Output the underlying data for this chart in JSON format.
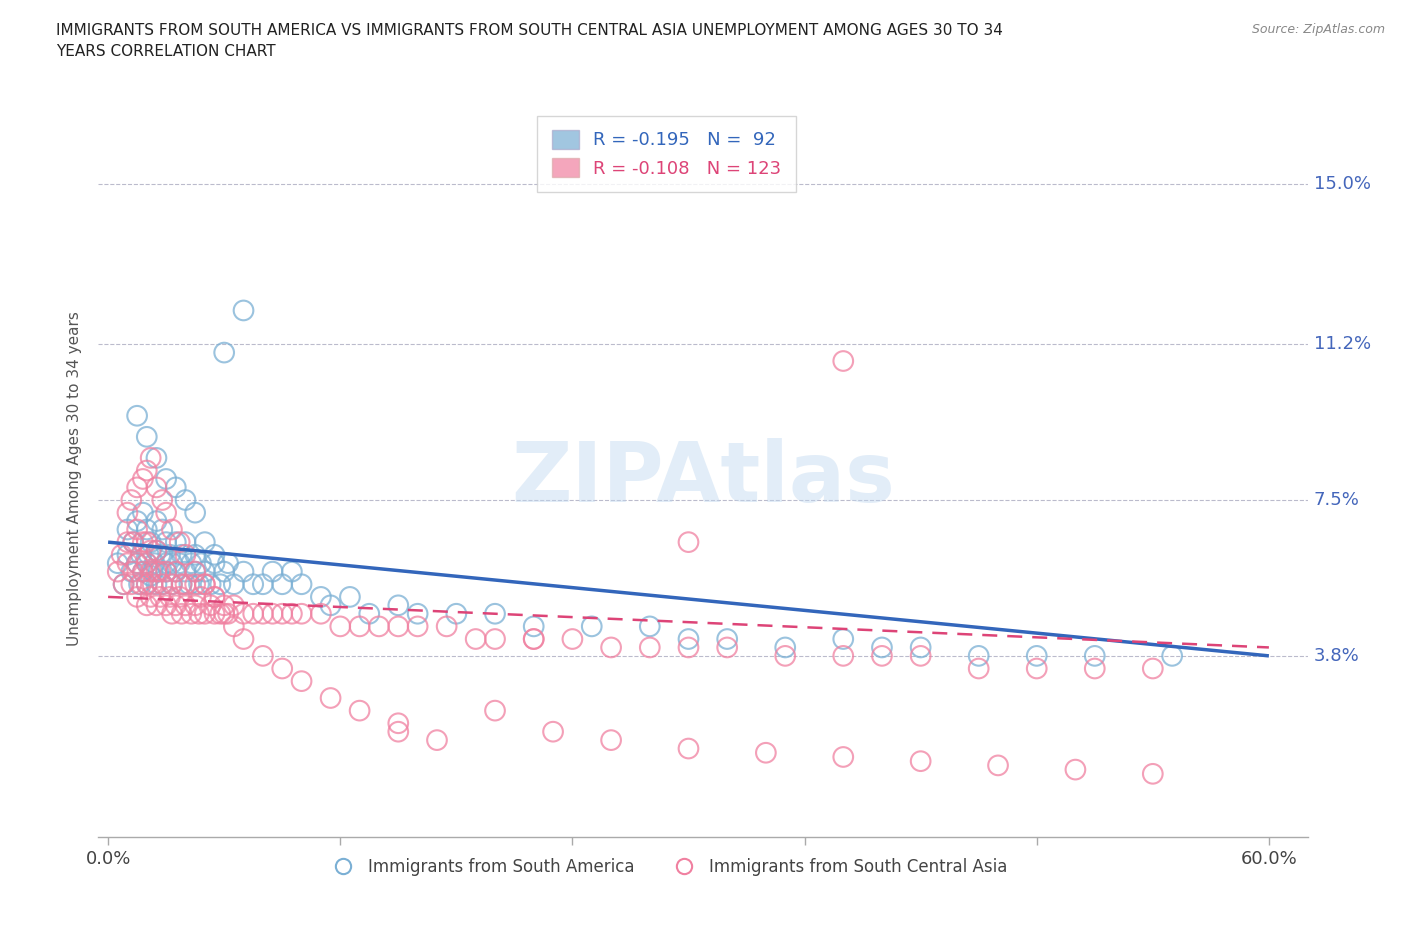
{
  "title": "IMMIGRANTS FROM SOUTH AMERICA VS IMMIGRANTS FROM SOUTH CENTRAL ASIA UNEMPLOYMENT AMONG AGES 30 TO 34\nYEARS CORRELATION CHART",
  "source_text": "Source: ZipAtlas.com",
  "ylabel": "Unemployment Among Ages 30 to 34 years",
  "xlim": [
    -0.005,
    0.62
  ],
  "ylim": [
    -0.005,
    0.165
  ],
  "xtick_positions": [
    0.0,
    0.12,
    0.24,
    0.36,
    0.48,
    0.6
  ],
  "xtick_labels_show": [
    "0.0%",
    "",
    "",
    "",
    "",
    "60.0%"
  ],
  "ytick_labels": [
    "3.8%",
    "7.5%",
    "11.2%",
    "15.0%"
  ],
  "ytick_values": [
    0.038,
    0.075,
    0.112,
    0.15
  ],
  "legend_blue_label": "Immigrants from South America",
  "legend_pink_label": "Immigrants from South Central Asia",
  "R_blue": -0.195,
  "N_blue": 92,
  "R_pink": -0.108,
  "N_pink": 123,
  "color_blue": "#7aafd4",
  "color_pink": "#f080a0",
  "line_blue": "#3366bb",
  "line_pink": "#dd4477",
  "watermark": "ZIPAtlas",
  "blue_scatter_x": [
    0.005,
    0.008,
    0.01,
    0.01,
    0.012,
    0.013,
    0.015,
    0.015,
    0.016,
    0.017,
    0.018,
    0.018,
    0.02,
    0.02,
    0.02,
    0.021,
    0.022,
    0.022,
    0.023,
    0.024,
    0.025,
    0.025,
    0.025,
    0.026,
    0.027,
    0.028,
    0.028,
    0.03,
    0.03,
    0.03,
    0.032,
    0.033,
    0.033,
    0.035,
    0.035,
    0.037,
    0.038,
    0.038,
    0.04,
    0.04,
    0.042,
    0.043,
    0.045,
    0.045,
    0.047,
    0.048,
    0.05,
    0.05,
    0.053,
    0.055,
    0.055,
    0.058,
    0.06,
    0.062,
    0.065,
    0.07,
    0.075,
    0.08,
    0.085,
    0.09,
    0.095,
    0.1,
    0.11,
    0.115,
    0.125,
    0.135,
    0.15,
    0.16,
    0.18,
    0.2,
    0.22,
    0.25,
    0.28,
    0.3,
    0.32,
    0.35,
    0.38,
    0.4,
    0.42,
    0.45,
    0.48,
    0.51,
    0.015,
    0.02,
    0.025,
    0.03,
    0.035,
    0.04,
    0.045,
    0.55,
    0.06,
    0.07
  ],
  "blue_scatter_y": [
    0.06,
    0.055,
    0.062,
    0.068,
    0.058,
    0.065,
    0.06,
    0.07,
    0.055,
    0.062,
    0.058,
    0.072,
    0.055,
    0.06,
    0.068,
    0.062,
    0.057,
    0.065,
    0.058,
    0.06,
    0.055,
    0.063,
    0.07,
    0.058,
    0.062,
    0.055,
    0.068,
    0.06,
    0.065,
    0.058,
    0.062,
    0.055,
    0.06,
    0.058,
    0.065,
    0.06,
    0.055,
    0.062,
    0.058,
    0.065,
    0.055,
    0.06,
    0.058,
    0.062,
    0.055,
    0.06,
    0.058,
    0.065,
    0.055,
    0.06,
    0.062,
    0.055,
    0.058,
    0.06,
    0.055,
    0.058,
    0.055,
    0.055,
    0.058,
    0.055,
    0.058,
    0.055,
    0.052,
    0.05,
    0.052,
    0.048,
    0.05,
    0.048,
    0.048,
    0.048,
    0.045,
    0.045,
    0.045,
    0.042,
    0.042,
    0.04,
    0.042,
    0.04,
    0.04,
    0.038,
    0.038,
    0.038,
    0.095,
    0.09,
    0.085,
    0.08,
    0.078,
    0.075,
    0.072,
    0.038,
    0.11,
    0.12
  ],
  "pink_scatter_x": [
    0.005,
    0.007,
    0.008,
    0.01,
    0.01,
    0.012,
    0.013,
    0.013,
    0.015,
    0.015,
    0.015,
    0.017,
    0.018,
    0.018,
    0.02,
    0.02,
    0.02,
    0.02,
    0.022,
    0.022,
    0.022,
    0.023,
    0.025,
    0.025,
    0.025,
    0.027,
    0.027,
    0.028,
    0.03,
    0.03,
    0.032,
    0.033,
    0.033,
    0.035,
    0.035,
    0.037,
    0.038,
    0.038,
    0.04,
    0.04,
    0.043,
    0.045,
    0.045,
    0.047,
    0.048,
    0.05,
    0.05,
    0.053,
    0.055,
    0.055,
    0.058,
    0.06,
    0.062,
    0.065,
    0.07,
    0.075,
    0.08,
    0.085,
    0.09,
    0.095,
    0.1,
    0.11,
    0.12,
    0.13,
    0.14,
    0.15,
    0.16,
    0.175,
    0.19,
    0.2,
    0.22,
    0.24,
    0.26,
    0.28,
    0.3,
    0.32,
    0.35,
    0.38,
    0.4,
    0.42,
    0.45,
    0.48,
    0.51,
    0.54,
    0.01,
    0.012,
    0.015,
    0.018,
    0.02,
    0.022,
    0.025,
    0.028,
    0.03,
    0.033,
    0.037,
    0.04,
    0.045,
    0.05,
    0.055,
    0.06,
    0.065,
    0.07,
    0.08,
    0.09,
    0.1,
    0.115,
    0.13,
    0.15,
    0.17,
    0.2,
    0.23,
    0.26,
    0.3,
    0.34,
    0.38,
    0.42,
    0.46,
    0.5,
    0.54,
    0.38,
    0.3,
    0.22,
    0.15
  ],
  "pink_scatter_y": [
    0.058,
    0.062,
    0.055,
    0.06,
    0.065,
    0.055,
    0.058,
    0.065,
    0.052,
    0.06,
    0.068,
    0.055,
    0.058,
    0.065,
    0.05,
    0.055,
    0.06,
    0.065,
    0.052,
    0.058,
    0.063,
    0.055,
    0.05,
    0.058,
    0.063,
    0.052,
    0.058,
    0.055,
    0.05,
    0.058,
    0.052,
    0.048,
    0.055,
    0.05,
    0.058,
    0.052,
    0.048,
    0.055,
    0.05,
    0.055,
    0.048,
    0.05,
    0.055,
    0.048,
    0.052,
    0.048,
    0.055,
    0.05,
    0.048,
    0.052,
    0.048,
    0.05,
    0.048,
    0.05,
    0.048,
    0.048,
    0.048,
    0.048,
    0.048,
    0.048,
    0.048,
    0.048,
    0.045,
    0.045,
    0.045,
    0.045,
    0.045,
    0.045,
    0.042,
    0.042,
    0.042,
    0.042,
    0.04,
    0.04,
    0.04,
    0.04,
    0.038,
    0.038,
    0.038,
    0.038,
    0.035,
    0.035,
    0.035,
    0.035,
    0.072,
    0.075,
    0.078,
    0.08,
    0.082,
    0.085,
    0.078,
    0.075,
    0.072,
    0.068,
    0.065,
    0.062,
    0.058,
    0.055,
    0.052,
    0.048,
    0.045,
    0.042,
    0.038,
    0.035,
    0.032,
    0.028,
    0.025,
    0.022,
    0.018,
    0.025,
    0.02,
    0.018,
    0.016,
    0.015,
    0.014,
    0.013,
    0.012,
    0.011,
    0.01,
    0.108,
    0.065,
    0.042,
    0.02
  ]
}
